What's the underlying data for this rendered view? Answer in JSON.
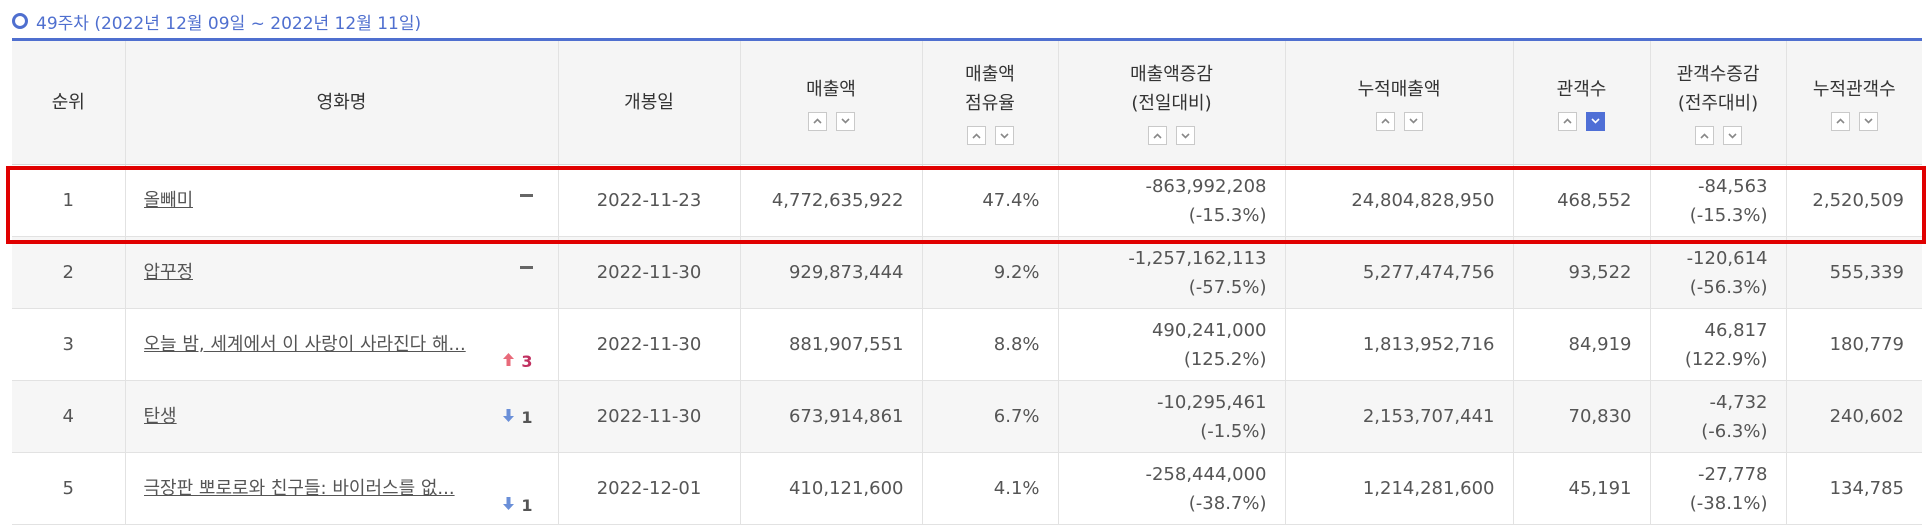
{
  "period": {
    "title": "49주차 (2022년 12월 09일 ~ 2022년 12월 11일)"
  },
  "columns": [
    {
      "lines": [
        "순위"
      ],
      "sortable": false,
      "active_sort": ""
    },
    {
      "lines": [
        "영화명"
      ],
      "sortable": false,
      "active_sort": ""
    },
    {
      "lines": [
        "개봉일"
      ],
      "sortable": false,
      "active_sort": ""
    },
    {
      "lines": [
        "매출액"
      ],
      "sortable": true,
      "active_sort": ""
    },
    {
      "lines": [
        "매출액",
        "점유율"
      ],
      "sortable": true,
      "active_sort": ""
    },
    {
      "lines": [
        "매출액증감",
        "(전일대비)"
      ],
      "sortable": true,
      "active_sort": ""
    },
    {
      "lines": [
        "누적매출액"
      ],
      "sortable": true,
      "active_sort": ""
    },
    {
      "lines": [
        "관객수"
      ],
      "sortable": true,
      "active_sort": "down"
    },
    {
      "lines": [
        "관객수증감",
        "(전주대비)"
      ],
      "sortable": true,
      "active_sort": ""
    },
    {
      "lines": [
        "누적관객수"
      ],
      "sortable": true,
      "active_sort": ""
    }
  ],
  "rows": [
    {
      "rank": "1",
      "title": "올빼미",
      "rank_change": {
        "direction": "same",
        "value": ""
      },
      "release_date": "2022-11-23",
      "sales": "4,772,635,922",
      "share": "47.4%",
      "sales_change": "-863,992,208",
      "sales_change_pct": "(-15.3%)",
      "cumulative_sales": "24,804,828,950",
      "audience": "468,552",
      "audience_change": "-84,563",
      "audience_change_pct": "(-15.3%)",
      "cumulative_audience": "2,520,509",
      "highlighted": true
    },
    {
      "rank": "2",
      "title": "압꾸정",
      "rank_change": {
        "direction": "same",
        "value": ""
      },
      "release_date": "2022-11-30",
      "sales": "929,873,444",
      "share": "9.2%",
      "sales_change": "-1,257,162,113",
      "sales_change_pct": "(-57.5%)",
      "cumulative_sales": "5,277,474,756",
      "audience": "93,522",
      "audience_change": "-120,614",
      "audience_change_pct": "(-56.3%)",
      "cumulative_audience": "555,339",
      "highlighted": false
    },
    {
      "rank": "3",
      "title": "오늘 밤, 세계에서 이 사랑이 사라진다 해...",
      "rank_change": {
        "direction": "up",
        "value": "3"
      },
      "release_date": "2022-11-30",
      "sales": "881,907,551",
      "share": "8.8%",
      "sales_change": "490,241,000",
      "sales_change_pct": "(125.2%)",
      "cumulative_sales": "1,813,952,716",
      "audience": "84,919",
      "audience_change": "46,817",
      "audience_change_pct": "(122.9%)",
      "cumulative_audience": "180,779",
      "highlighted": false
    },
    {
      "rank": "4",
      "title": "탄생",
      "rank_change": {
        "direction": "down",
        "value": "1"
      },
      "release_date": "2022-11-30",
      "sales": "673,914,861",
      "share": "6.7%",
      "sales_change": "-10,295,461",
      "sales_change_pct": "(-1.5%)",
      "cumulative_sales": "2,153,707,441",
      "audience": "70,830",
      "audience_change": "-4,732",
      "audience_change_pct": "(-6.3%)",
      "cumulative_audience": "240,602",
      "highlighted": false
    },
    {
      "rank": "5",
      "title": "극장판 뽀로로와 친구들: 바이러스를 없...",
      "rank_change": {
        "direction": "down",
        "value": "1"
      },
      "release_date": "2022-12-01",
      "sales": "410,121,600",
      "share": "4.1%",
      "sales_change": "-258,444,000",
      "sales_change_pct": "(-38.7%)",
      "cumulative_sales": "1,214,281,600",
      "audience": "45,191",
      "audience_change": "-27,778",
      "audience_change_pct": "(-38.1%)",
      "cumulative_audience": "134,785",
      "highlighted": false
    }
  ],
  "colors": {
    "accent": "#4f6fcf",
    "highlight_border": "#e00000",
    "rank_up": "#c03060",
    "rank_down_arrow": "#6a8fd8"
  }
}
